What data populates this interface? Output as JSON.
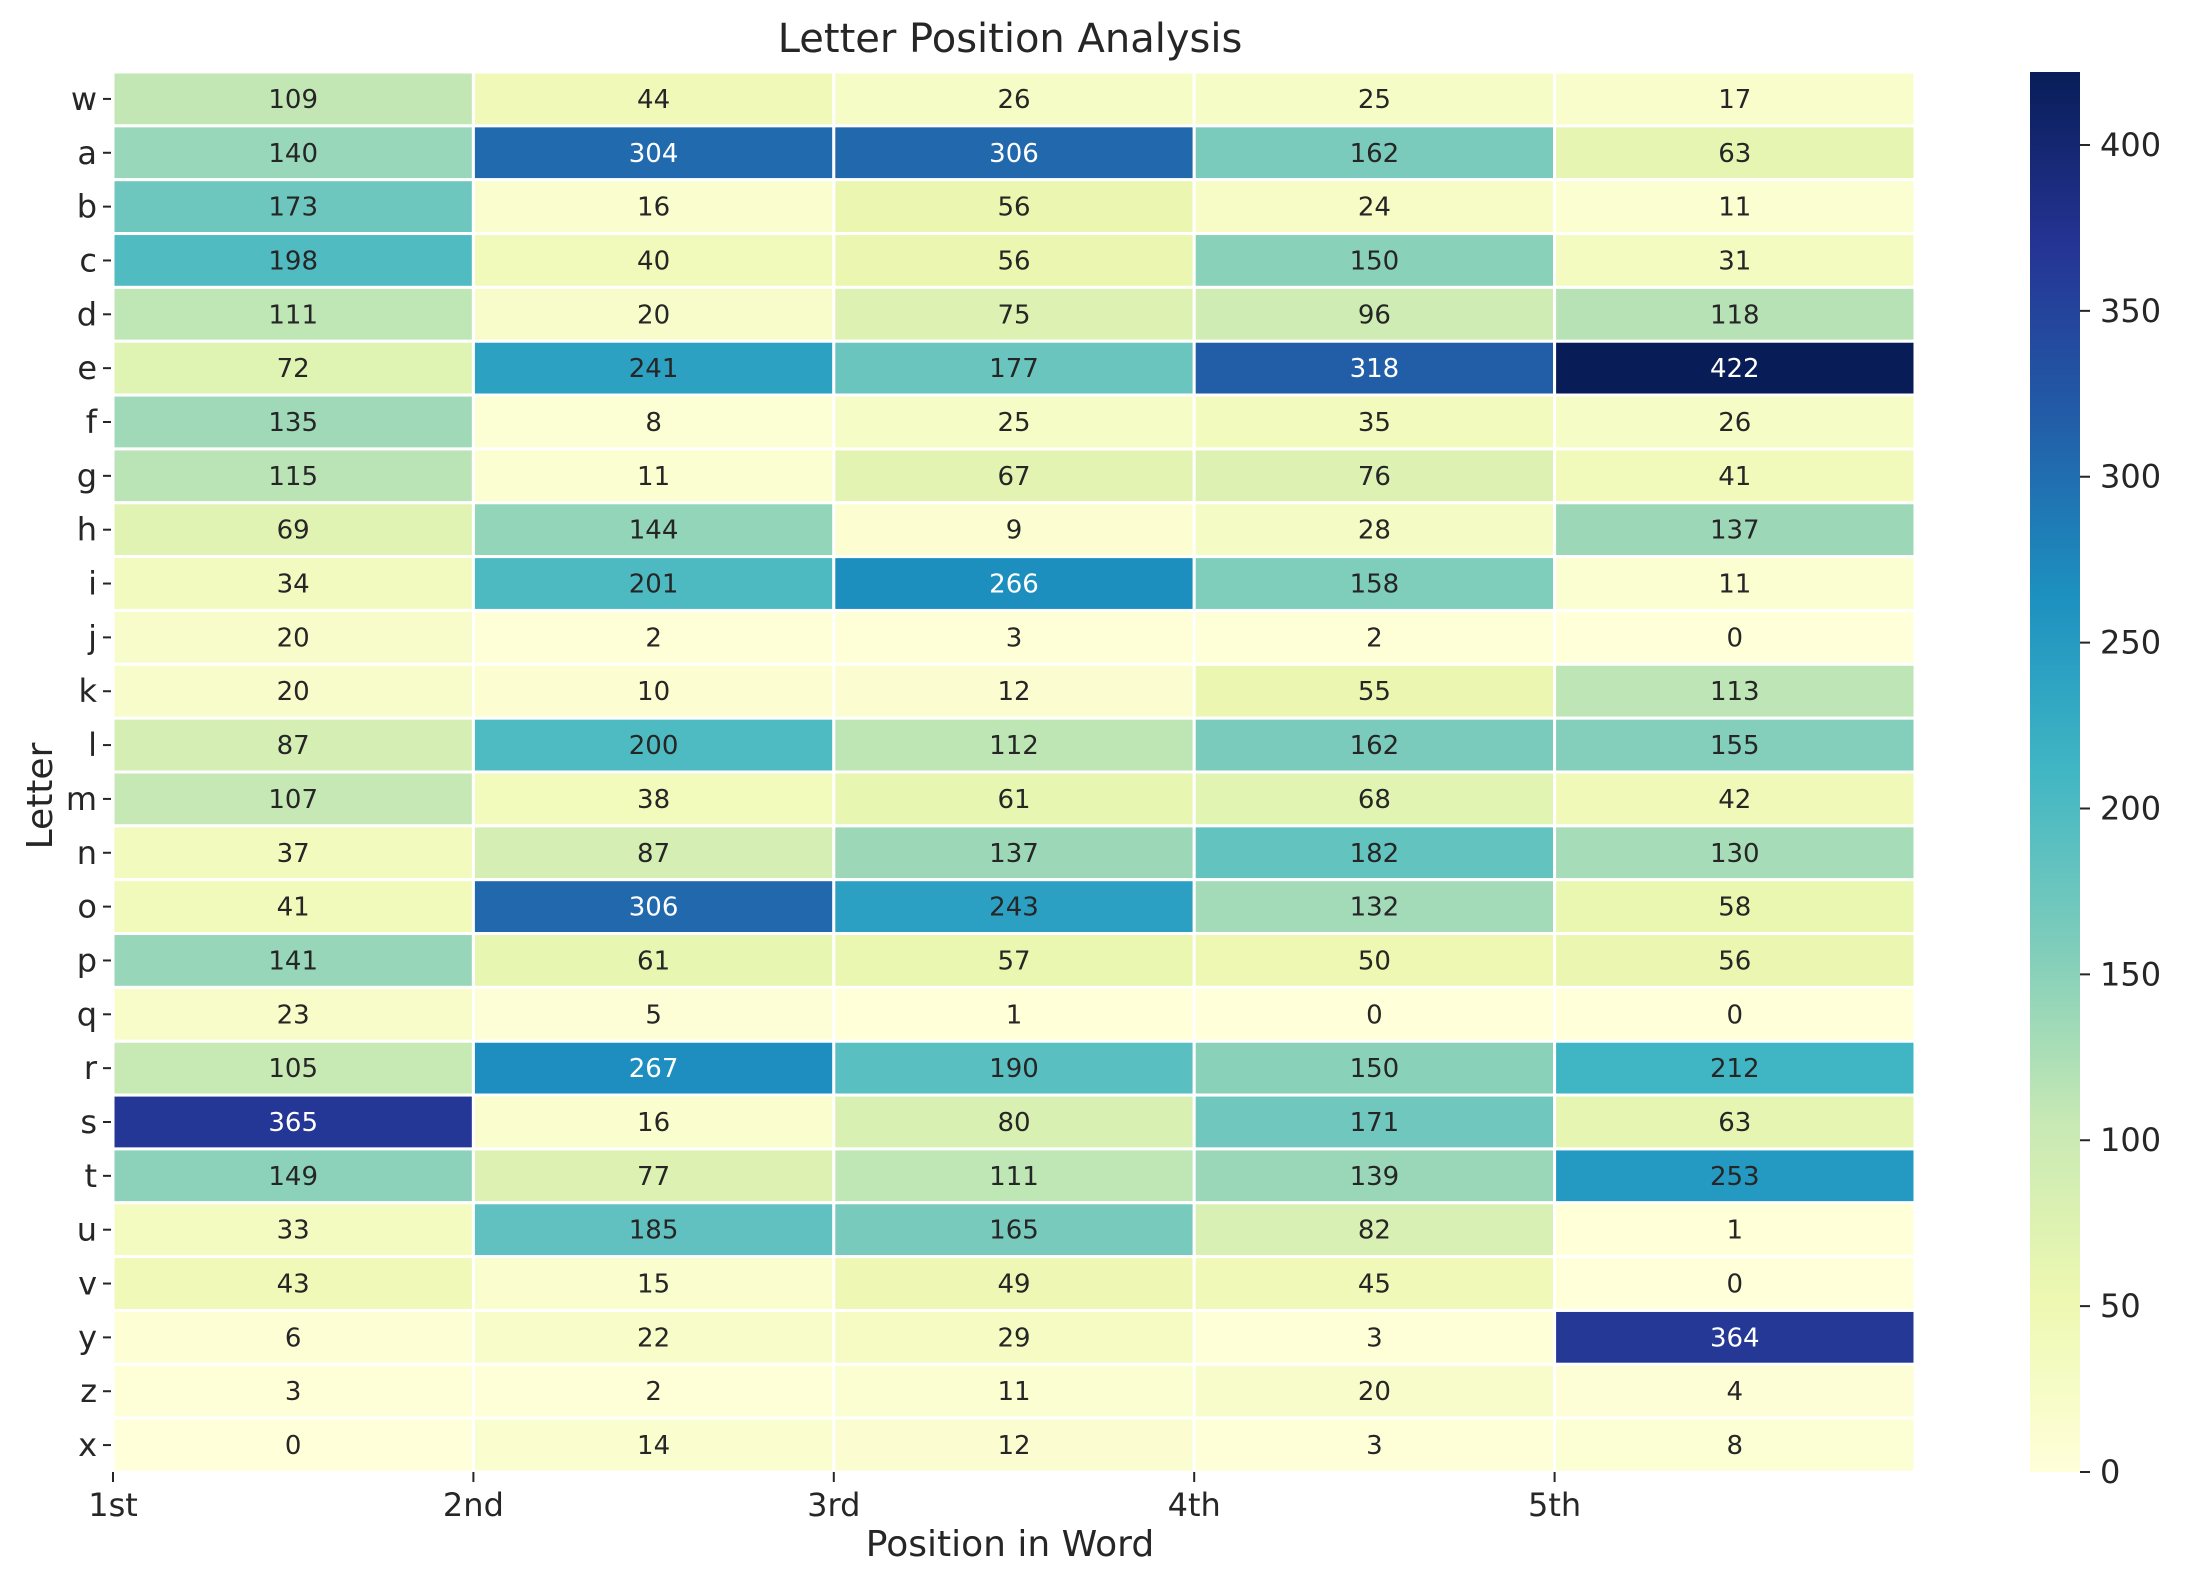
{
  "chart_data": {
    "type": "heatmap",
    "title": "Letter Position Analysis",
    "xlabel": "Position in Word",
    "ylabel": "Letter",
    "x_ticks": [
      "1st",
      "2nd",
      "3rd",
      "4th",
      "5th"
    ],
    "rows": [
      "w",
      "a",
      "b",
      "c",
      "d",
      "e",
      "f",
      "g",
      "h",
      "i",
      "j",
      "k",
      "l",
      "m",
      "n",
      "o",
      "p",
      "q",
      "r",
      "s",
      "t",
      "u",
      "v",
      "y",
      "z",
      "x"
    ],
    "values": [
      [
        109,
        44,
        26,
        25,
        17
      ],
      [
        140,
        304,
        306,
        162,
        63
      ],
      [
        173,
        16,
        56,
        24,
        11
      ],
      [
        198,
        40,
        56,
        150,
        31
      ],
      [
        111,
        20,
        75,
        96,
        118
      ],
      [
        72,
        241,
        177,
        318,
        422
      ],
      [
        135,
        8,
        25,
        35,
        26
      ],
      [
        115,
        11,
        67,
        76,
        41
      ],
      [
        69,
        144,
        9,
        28,
        137
      ],
      [
        34,
        201,
        266,
        158,
        11
      ],
      [
        20,
        2,
        3,
        2,
        0
      ],
      [
        20,
        10,
        12,
        55,
        113
      ],
      [
        87,
        200,
        112,
        162,
        155
      ],
      [
        107,
        38,
        61,
        68,
        42
      ],
      [
        37,
        87,
        137,
        182,
        130
      ],
      [
        41,
        306,
        243,
        132,
        58
      ],
      [
        141,
        61,
        57,
        50,
        56
      ],
      [
        23,
        5,
        1,
        0,
        0
      ],
      [
        105,
        267,
        190,
        150,
        212
      ],
      [
        365,
        16,
        80,
        171,
        63
      ],
      [
        149,
        77,
        111,
        139,
        253
      ],
      [
        33,
        185,
        165,
        82,
        1
      ],
      [
        43,
        15,
        49,
        45,
        0
      ],
      [
        6,
        22,
        29,
        3,
        364
      ],
      [
        3,
        2,
        11,
        20,
        4
      ],
      [
        0,
        14,
        12,
        3,
        8
      ]
    ],
    "colorbar": {
      "colormap": "YlGnBu",
      "range": [
        0,
        422
      ],
      "ticks": [
        "0",
        "50",
        "100",
        "150",
        "200",
        "250",
        "300",
        "350",
        "400"
      ]
    },
    "grid": false,
    "legend": "colorbar on right"
  }
}
